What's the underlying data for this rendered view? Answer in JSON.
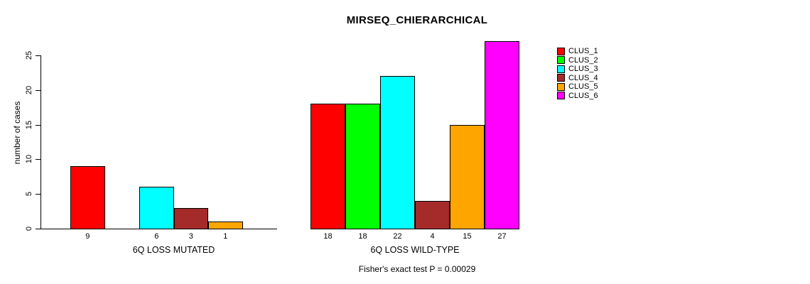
{
  "chart_data": {
    "type": "bar",
    "title": "MIRSEQ_CHIERARCHICAL",
    "ylabel": "number of cases",
    "yticks": [
      0,
      5,
      10,
      15,
      20,
      25
    ],
    "ylim": [
      0,
      27
    ],
    "grid": false,
    "legend_position": "right",
    "series": [
      {
        "name": "CLUS_1",
        "color": "#FF0000"
      },
      {
        "name": "CLUS_2",
        "color": "#00FF00"
      },
      {
        "name": "CLUS_3",
        "color": "#00FFFF"
      },
      {
        "name": "CLUS_4",
        "color": "#A52A2A"
      },
      {
        "name": "CLUS_5",
        "color": "#FFA500"
      },
      {
        "name": "CLUS_6",
        "color": "#FF00FF"
      }
    ],
    "groups": [
      {
        "label": "6Q LOSS MUTATED",
        "values": [
          9,
          0,
          6,
          3,
          1,
          0
        ],
        "bar_labels": [
          "9",
          "",
          "6",
          "3",
          "1",
          ""
        ]
      },
      {
        "label": "6Q LOSS WILD-TYPE",
        "values": [
          18,
          18,
          22,
          4,
          15,
          27
        ],
        "bar_labels": [
          "18",
          "18",
          "22",
          "4",
          "15",
          "27"
        ]
      }
    ],
    "annotation": "Fisher's exact test P = 0.00029"
  }
}
